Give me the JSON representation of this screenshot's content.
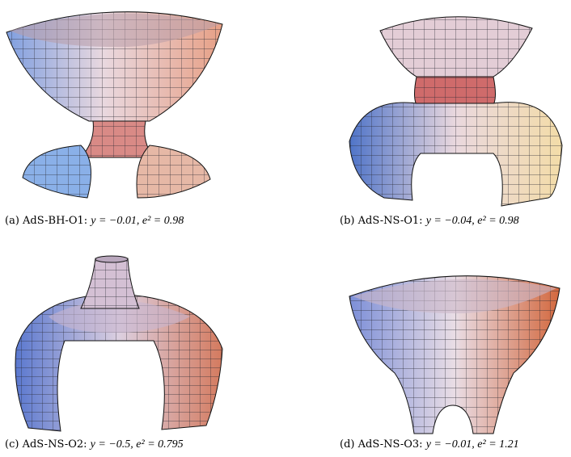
{
  "figure": {
    "panels": [
      {
        "id": "a",
        "label": "(a)",
        "name": "AdS-BH-O1:",
        "equation": "y = −0.01, e² = 0.98"
      },
      {
        "id": "b",
        "label": "(b)",
        "name": "AdS-NS-O1:",
        "equation": "y = −0.04, e² = 0.98"
      },
      {
        "id": "c",
        "label": "(c)",
        "name": "AdS-NS-O2:",
        "equation": "y = −0.5, e² = 0.795"
      },
      {
        "id": "d",
        "label": "(d)",
        "name": "AdS-NS-O3:",
        "equation": "y = −0.01, e² = 1.21"
      }
    ]
  }
}
